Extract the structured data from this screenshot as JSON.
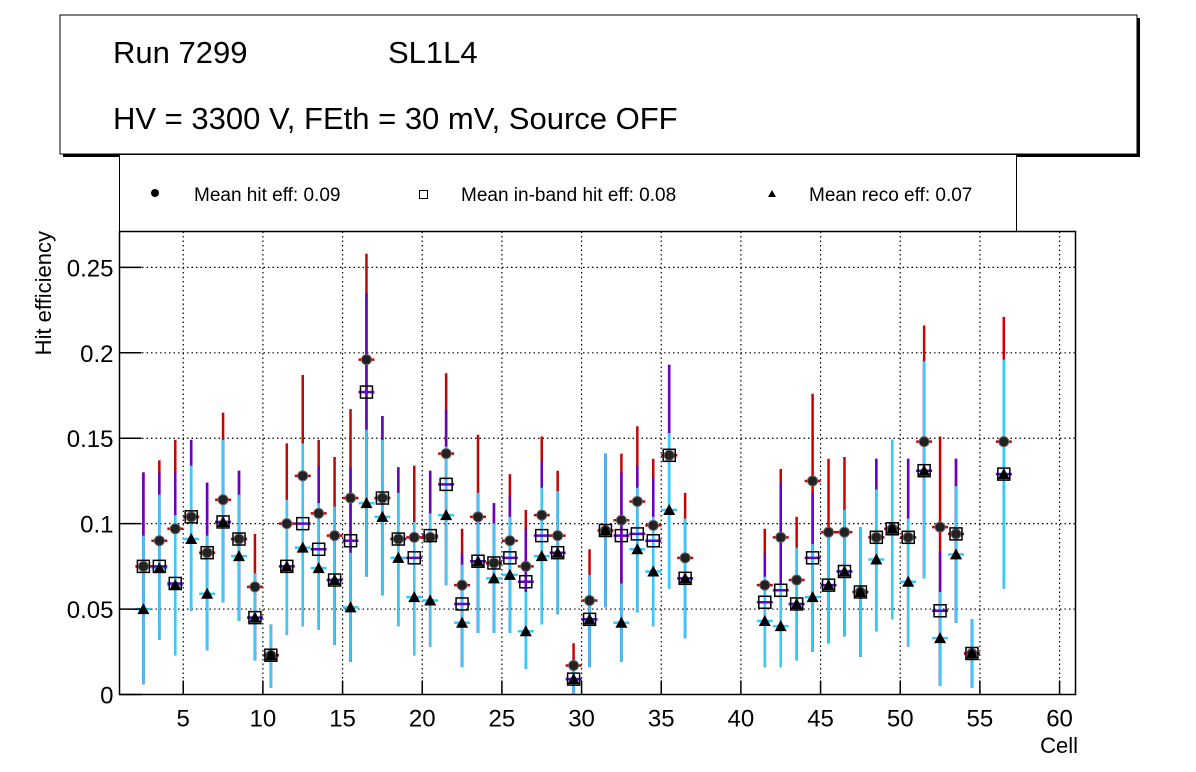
{
  "title_box": {
    "line1_left": "Run 7299",
    "line1_right": "SL1L4",
    "line2": "HV = 3300 V, FEth = 30 mV, Source OFF"
  },
  "legend": {
    "items": [
      {
        "marker": "filled-circle",
        "label": "Mean hit  eff: 0.09"
      },
      {
        "marker": "open-square",
        "label": "Mean in-band hit eff: 0.08"
      },
      {
        "marker": "filled-triangle",
        "label": "Mean reco eff: 0.07"
      }
    ]
  },
  "colors": {
    "hit_error": "#cc0000",
    "inband_error": "#6600cc",
    "reco_error": "#33ccff",
    "marker": "#000000",
    "grid": "#000000"
  },
  "chart_data": {
    "type": "scatter",
    "title": "Run 7299  SL1L4 — HV = 3300 V, FEth = 30 mV, Source OFF",
    "xlabel": "Cell",
    "ylabel": "Hit efficiency",
    "xlim": [
      1,
      61
    ],
    "ylim": [
      0,
      0.271
    ],
    "xticks": [
      5,
      10,
      15,
      20,
      25,
      30,
      35,
      40,
      45,
      50,
      55,
      60
    ],
    "xtick_labels": [
      "5",
      "10",
      "15",
      "20",
      "25",
      "30",
      "35",
      "40",
      "45",
      "50",
      "55",
      "60"
    ],
    "yticks": [
      0,
      0.05,
      0.1,
      0.15,
      0.2,
      0.25
    ],
    "ytick_labels": [
      "0",
      "0.05",
      "0.1",
      "0.15",
      "0.2",
      "0.25"
    ],
    "grid": true,
    "legend_position": "top",
    "cells": [
      2,
      3,
      4,
      5,
      6,
      7,
      8,
      9,
      10,
      11,
      12,
      13,
      14,
      15,
      16,
      17,
      18,
      19,
      20,
      21,
      22,
      23,
      24,
      25,
      26,
      27,
      28,
      29,
      30,
      31,
      32,
      33,
      34,
      35,
      36,
      41,
      42,
      43,
      44,
      45,
      46,
      47,
      48,
      49,
      50,
      51,
      52,
      53,
      54,
      56
    ],
    "series": [
      {
        "name": "Mean hit eff",
        "marker": "filled-circle",
        "values": [
          0.075,
          0.09,
          0.097,
          0.104,
          0.083,
          0.114,
          0.091,
          0.063,
          0.023,
          0.1,
          0.128,
          0.106,
          0.093,
          0.115,
          0.196,
          0.115,
          0.091,
          0.092,
          0.092,
          0.141,
          0.064,
          0.104,
          0.077,
          0.09,
          0.075,
          0.105,
          0.093,
          0.017,
          0.055,
          0.096,
          0.102,
          0.113,
          0.099,
          0.14,
          0.08,
          0.064,
          0.092,
          0.067,
          0.125,
          0.095,
          0.095,
          0.06,
          0.092,
          0.097,
          0.092,
          0.148,
          0.098,
          0.094,
          0.024,
          0.148
        ],
        "err_upper": [
          0.13,
          0.137,
          0.149,
          0.149,
          0.124,
          0.165,
          0.131,
          0.094,
          0.041,
          0.147,
          0.187,
          0.149,
          0.139,
          0.167,
          0.258,
          0.163,
          0.133,
          0.134,
          0.131,
          0.188,
          0.097,
          0.152,
          0.112,
          0.129,
          0.108,
          0.151,
          0.131,
          0.03,
          0.085,
          0.141,
          0.141,
          0.157,
          0.138,
          0.193,
          0.118,
          0.097,
          0.132,
          0.104,
          0.176,
          0.138,
          0.139,
          0.098,
          0.138,
          0.149,
          0.138,
          0.216,
          0.151,
          0.138,
          0.044,
          0.221
        ],
        "err_lower": [
          0.006,
          0.032,
          0.023,
          0.049,
          0.026,
          0.054,
          0.043,
          0.02,
          0.004,
          0.035,
          0.04,
          0.038,
          0.029,
          0.019,
          0.069,
          0.058,
          0.04,
          0.023,
          0.028,
          0.064,
          0.016,
          0.036,
          0.036,
          0.036,
          0.015,
          0.041,
          0.047,
          0.0,
          0.016,
          0.051,
          0.019,
          0.048,
          0.04,
          0.062,
          0.033,
          0.016,
          0.016,
          0.02,
          0.025,
          0.03,
          0.034,
          0.022,
          0.037,
          0.044,
          0.028,
          0.068,
          0.005,
          0.042,
          0.004,
          0.062
        ]
      },
      {
        "name": "Mean in-band hit eff",
        "marker": "open-square",
        "values": [
          0.075,
          0.075,
          0.065,
          0.104,
          0.083,
          0.101,
          0.091,
          0.045,
          0.023,
          0.075,
          0.1,
          0.085,
          0.067,
          0.09,
          0.177,
          0.115,
          0.091,
          0.08,
          0.093,
          0.123,
          0.053,
          0.078,
          0.077,
          0.08,
          0.066,
          0.093,
          0.083,
          0.009,
          0.044,
          0.096,
          0.093,
          0.094,
          0.09,
          0.14,
          0.068,
          0.054,
          0.061,
          0.053,
          0.08,
          0.064,
          0.072,
          0.06,
          0.092,
          0.097,
          0.092,
          0.131,
          0.049,
          0.094,
          0.024,
          0.129
        ],
        "err_upper": [
          0.13,
          0.13,
          0.13,
          0.149,
          0.124,
          0.149,
          0.131,
          0.071,
          0.041,
          0.114,
          0.147,
          0.134,
          0.11,
          0.133,
          0.235,
          0.163,
          0.133,
          0.101,
          0.131,
          0.167,
          0.083,
          0.118,
          0.112,
          0.116,
          0.097,
          0.136,
          0.119,
          0.02,
          0.07,
          0.141,
          0.13,
          0.134,
          0.127,
          0.193,
          0.103,
          0.083,
          0.124,
          0.086,
          0.118,
          0.095,
          0.108,
          0.098,
          0.138,
          0.149,
          0.138,
          0.195,
          0.084,
          0.138,
          0.044,
          0.196
        ]
      },
      {
        "name": "Mean reco eff",
        "marker": "filled-triangle",
        "values": [
          0.05,
          0.074,
          0.064,
          0.091,
          0.059,
          0.101,
          0.081,
          0.045,
          0.023,
          0.075,
          0.086,
          0.074,
          0.067,
          0.051,
          0.112,
          0.104,
          0.08,
          0.057,
          0.055,
          0.105,
          0.042,
          0.078,
          0.068,
          0.07,
          0.037,
          0.081,
          0.083,
          0.009,
          0.044,
          0.096,
          0.042,
          0.085,
          0.072,
          0.108,
          0.068,
          0.043,
          0.04,
          0.053,
          0.057,
          0.064,
          0.072,
          0.06,
          0.079,
          0.097,
          0.066,
          0.131,
          0.033,
          0.082,
          0.024,
          0.129
        ],
        "err_upper": [
          0.093,
          0.117,
          0.105,
          0.134,
          0.093,
          0.149,
          0.117,
          0.071,
          0.041,
          0.114,
          0.147,
          0.112,
          0.11,
          0.083,
          0.155,
          0.149,
          0.118,
          0.101,
          0.106,
          0.145,
          0.076,
          0.118,
          0.1,
          0.104,
          0.06,
          0.121,
          0.119,
          0.02,
          0.07,
          0.141,
          0.065,
          0.121,
          0.104,
          0.153,
          0.103,
          0.069,
          0.065,
          0.086,
          0.088,
          0.095,
          0.108,
          0.098,
          0.12,
          0.149,
          0.103,
          0.195,
          0.06,
          0.122,
          0.044,
          0.196
        ]
      }
    ]
  }
}
